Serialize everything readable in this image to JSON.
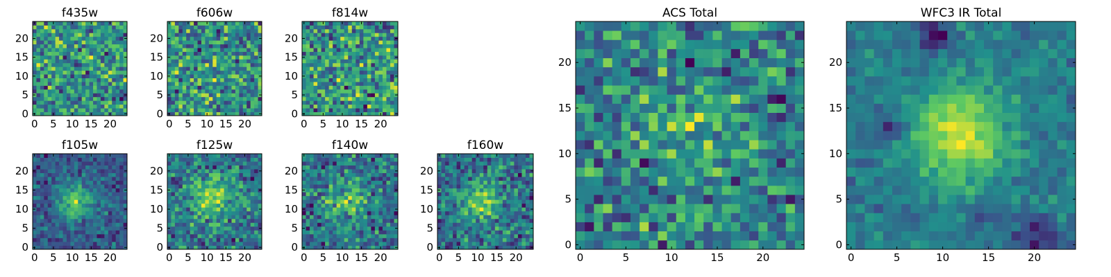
{
  "figure": {
    "colormap_name": "viridis",
    "colormap_stops": [
      "#440154",
      "#3b528b",
      "#21918c",
      "#5ec962",
      "#fde725"
    ]
  },
  "chart_data": [
    {
      "type": "heatmap",
      "title": "f435w",
      "grid_size": [
        25,
        25
      ],
      "xlim": [
        -0.5,
        24.5
      ],
      "ylim": [
        -0.5,
        24.5
      ],
      "xticks": [
        0,
        5,
        10,
        15,
        20
      ],
      "yticks": [
        0,
        5,
        10,
        15,
        20
      ],
      "noise": 0.9,
      "blobs": [],
      "seed": 11
    },
    {
      "type": "heatmap",
      "title": "f606w",
      "grid_size": [
        25,
        25
      ],
      "xlim": [
        -0.5,
        24.5
      ],
      "ylim": [
        -0.5,
        24.5
      ],
      "xticks": [
        0,
        5,
        10,
        15,
        20
      ],
      "yticks": [
        0,
        5,
        10,
        15,
        20
      ],
      "noise": 0.9,
      "blobs": [],
      "seed": 23
    },
    {
      "type": "heatmap",
      "title": "f814w",
      "grid_size": [
        25,
        25
      ],
      "xlim": [
        -0.5,
        24.5
      ],
      "ylim": [
        -0.5,
        24.5
      ],
      "xticks": [
        0,
        5,
        10,
        15,
        20
      ],
      "yticks": [
        0,
        5,
        10,
        15,
        20
      ],
      "noise": 0.9,
      "blobs": [],
      "seed": 37
    },
    {
      "type": "heatmap",
      "title": "f105w",
      "grid_size": [
        25,
        25
      ],
      "xlim": [
        -0.5,
        24.5
      ],
      "ylim": [
        -0.5,
        24.5
      ],
      "xticks": [
        0,
        5,
        10,
        15,
        20
      ],
      "yticks": [
        0,
        5,
        10,
        15,
        20
      ],
      "noise": 0.55,
      "blobs": [
        {
          "x": 11,
          "y": 12,
          "amp": 0.8,
          "sigma": 3.5
        }
      ],
      "seed": 41
    },
    {
      "type": "heatmap",
      "title": "f125w",
      "grid_size": [
        25,
        25
      ],
      "xlim": [
        -0.5,
        24.5
      ],
      "ylim": [
        -0.5,
        24.5
      ],
      "xticks": [
        0,
        5,
        10,
        15,
        20
      ],
      "yticks": [
        0,
        5,
        10,
        15,
        20
      ],
      "noise": 0.6,
      "blobs": [
        {
          "x": 11,
          "y": 13,
          "amp": 0.55,
          "sigma": 4
        }
      ],
      "seed": 53
    },
    {
      "type": "heatmap",
      "title": "f140w",
      "grid_size": [
        25,
        25
      ],
      "xlim": [
        -0.5,
        24.5
      ],
      "ylim": [
        -0.5,
        24.5
      ],
      "xticks": [
        0,
        5,
        10,
        15,
        20
      ],
      "yticks": [
        0,
        5,
        10,
        15,
        20
      ],
      "noise": 0.65,
      "blobs": [
        {
          "x": 11,
          "y": 12,
          "amp": 0.45,
          "sigma": 4
        }
      ],
      "seed": 67
    },
    {
      "type": "heatmap",
      "title": "f160w",
      "grid_size": [
        25,
        25
      ],
      "xlim": [
        -0.5,
        24.5
      ],
      "ylim": [
        -0.5,
        24.5
      ],
      "xticks": [
        0,
        5,
        10,
        15,
        20
      ],
      "yticks": [
        0,
        5,
        10,
        15,
        20
      ],
      "noise": 0.6,
      "blobs": [
        {
          "x": 11,
          "y": 12,
          "amp": 0.55,
          "sigma": 3.5
        }
      ],
      "seed": 79
    },
    {
      "type": "heatmap",
      "title": "ACS Total",
      "grid_size": [
        25,
        25
      ],
      "xlim": [
        -0.5,
        24.5
      ],
      "ylim": [
        -0.5,
        24.5
      ],
      "xticks": [
        0,
        5,
        10,
        15,
        20
      ],
      "yticks": [
        0,
        5,
        10,
        15,
        20
      ],
      "noise": 0.7,
      "blobs": [
        {
          "x": 12,
          "y": 12,
          "amp": 0.25,
          "sigma": 5
        }
      ],
      "seed": 97
    },
    {
      "type": "heatmap",
      "title": "WFC3 IR Total",
      "grid_size": [
        25,
        25
      ],
      "xlim": [
        -0.5,
        24.5
      ],
      "ylim": [
        -0.5,
        24.5
      ],
      "xticks": [
        0,
        5,
        10,
        15,
        20
      ],
      "yticks": [
        0,
        5,
        10,
        15,
        20
      ],
      "noise": 0.35,
      "blobs": [
        {
          "x": 12,
          "y": 12,
          "amp": 0.9,
          "sigma": 3.5
        },
        {
          "x": 9,
          "y": 23,
          "amp": -0.7,
          "sigma": 1.1
        },
        {
          "x": 4,
          "y": 13,
          "amp": -0.6,
          "sigma": 1.0
        },
        {
          "x": 20,
          "y": 1,
          "amp": -0.5,
          "sigma": 1.6
        },
        {
          "x": 14,
          "y": 3,
          "amp": -0.4,
          "sigma": 1.0
        }
      ],
      "seed": 113
    }
  ]
}
